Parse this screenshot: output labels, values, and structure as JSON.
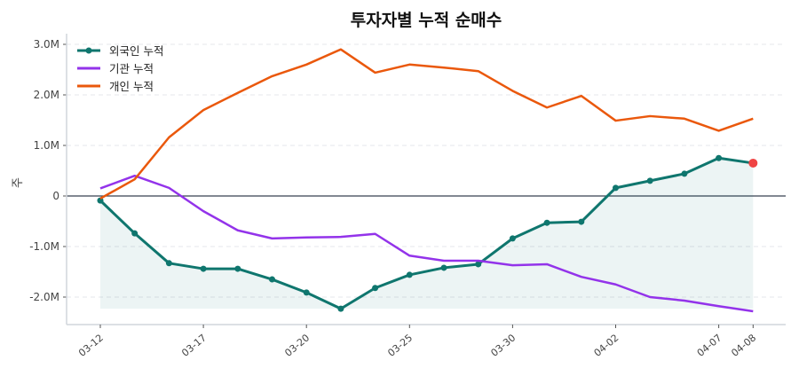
{
  "chart_data": {
    "type": "line",
    "title": "투자자별 누적 순매수",
    "ylabel": "주",
    "xlabel": "",
    "x_tick_labels": [
      {
        "index": 0,
        "label": "03-12"
      },
      {
        "index": 3,
        "label": "03-17"
      },
      {
        "index": 6,
        "label": "03-20"
      },
      {
        "index": 9,
        "label": "03-25"
      },
      {
        "index": 12,
        "label": "03-30"
      },
      {
        "index": 15,
        "label": "04-02"
      },
      {
        "index": 18,
        "label": "04-07"
      },
      {
        "index": 19,
        "label": "04-08"
      }
    ],
    "y_ticks": [
      {
        "value": 3000000,
        "label": "3.0M"
      },
      {
        "value": 2000000,
        "label": "2.0M"
      },
      {
        "value": 1000000,
        "label": "1.0M"
      },
      {
        "value": 0,
        "label": "0"
      },
      {
        "value": -1000000,
        "label": "-1.0M"
      },
      {
        "value": -2000000,
        "label": "-2.0M"
      }
    ],
    "ylim": [
      -2500000,
      3200000
    ],
    "grid": "horizontal dashed",
    "legend": "top-left",
    "series": [
      {
        "name": "외국인 누적",
        "color": "#0f766e",
        "markers": true,
        "fill": true,
        "last_point_color": "#ef4444",
        "values": [
          -90000,
          -740000,
          -1330000,
          -1440000,
          -1440000,
          -1650000,
          -1910000,
          -2230000,
          -1820000,
          -1560000,
          -1420000,
          -1350000,
          -840000,
          -530000,
          -510000,
          160000,
          300000,
          440000,
          750000,
          650000
        ]
      },
      {
        "name": "기관 누적",
        "color": "#9333ea",
        "values": [
          150000,
          400000,
          160000,
          -300000,
          -680000,
          -840000,
          -820000,
          -810000,
          -750000,
          -1180000,
          -1280000,
          -1280000,
          -1370000,
          -1350000,
          -1600000,
          -1750000,
          -2000000,
          -2070000,
          -2180000,
          -2280000
        ]
      },
      {
        "name": "개인 누적",
        "color": "#ea580c",
        "values": [
          -50000,
          330000,
          1160000,
          1700000,
          2040000,
          2370000,
          2600000,
          2900000,
          2440000,
          2600000,
          2540000,
          2470000,
          2080000,
          1750000,
          1980000,
          1490000,
          1580000,
          1530000,
          1290000,
          1530000
        ]
      }
    ]
  }
}
